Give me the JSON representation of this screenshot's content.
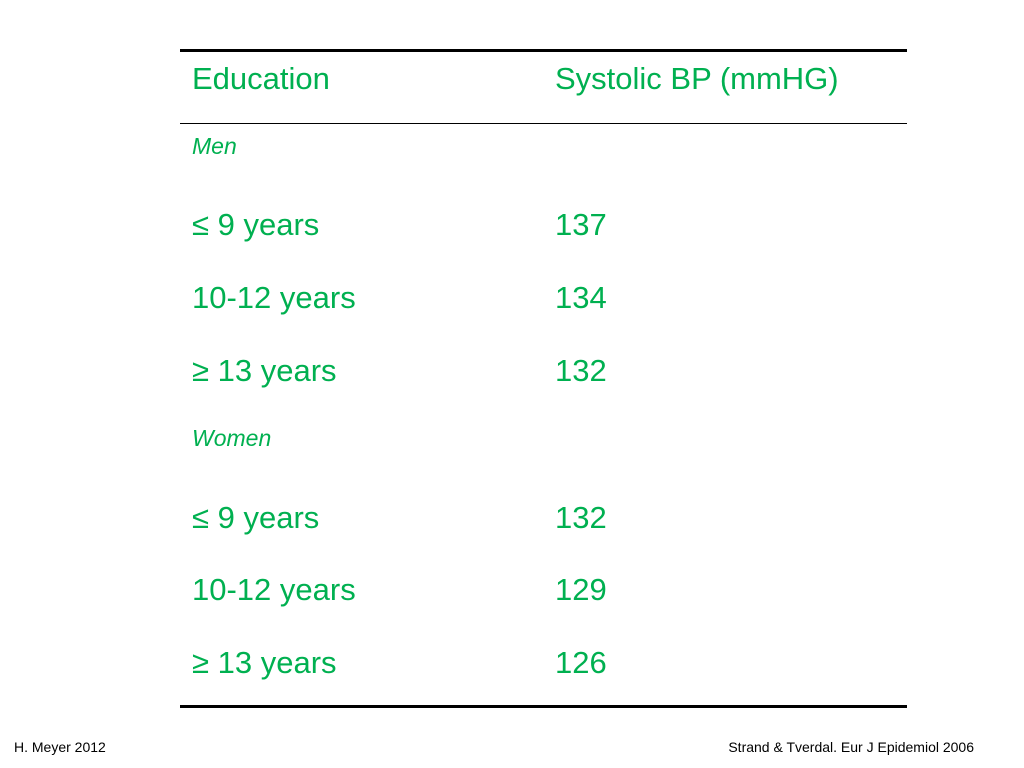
{
  "table": {
    "header": {
      "col1": "Education",
      "col2": "Systolic BP (mmHG)"
    },
    "groups": [
      {
        "label": "Men",
        "rows": [
          {
            "education": "≤ 9 years",
            "value": "137"
          },
          {
            "education": "10-12 years",
            "value": "134"
          },
          {
            "education": "≥ 13 years",
            "value": "132"
          }
        ]
      },
      {
        "label": "Women",
        "rows": [
          {
            "education": "≤ 9 years",
            "value": "132"
          },
          {
            "education": "10-12 years",
            "value": "129"
          },
          {
            "education": "≥ 13 years",
            "value": "126"
          }
        ]
      }
    ],
    "text_color": "#00b050"
  },
  "footer": {
    "left": "H. Meyer 2012",
    "right": "Strand & Tverdal. Eur J Epidemiol 2006"
  }
}
